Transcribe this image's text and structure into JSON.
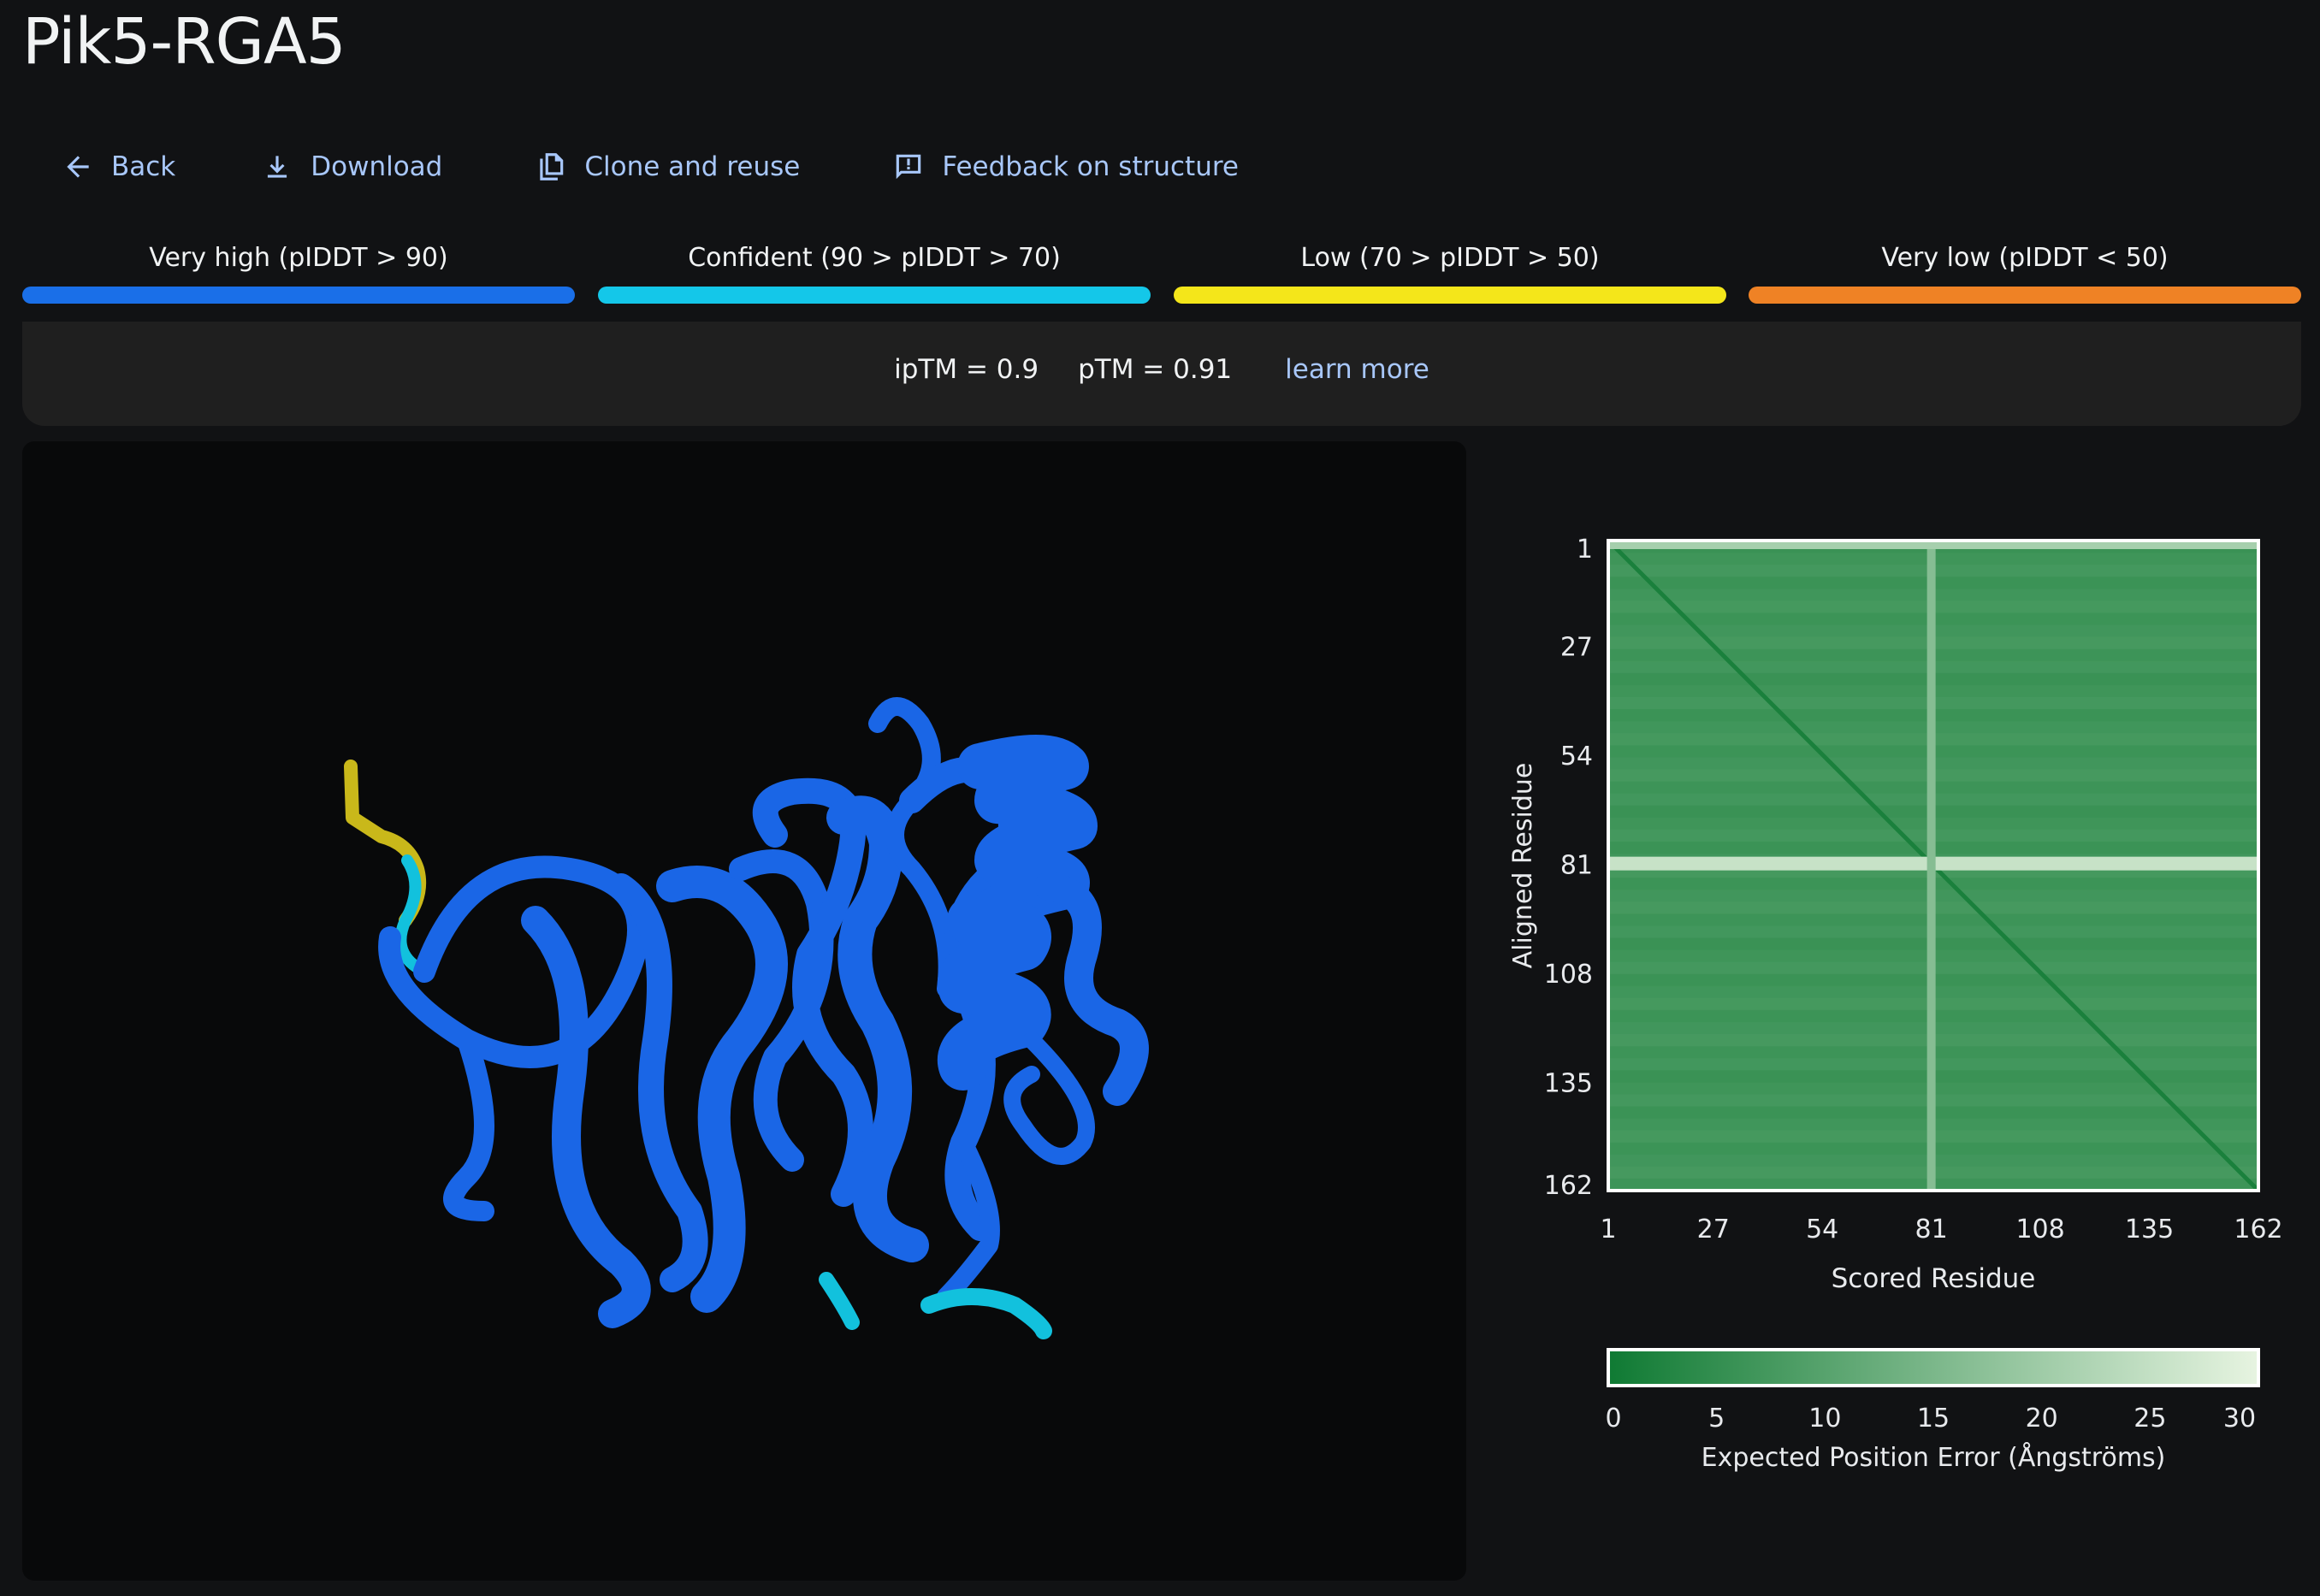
{
  "title": "Pik5-RGA5",
  "toolbar": {
    "back": "Back",
    "download": "Download",
    "clone": "Clone and reuse",
    "feedback": "Feedback on structure"
  },
  "plddt_legend": [
    {
      "label": "Very high (pIDDT > 90)",
      "color": "#1a6fe8"
    },
    {
      "label": "Confident (90 > pIDDT > 70)",
      "color": "#14c7e9"
    },
    {
      "label": "Low (70 > pIDDT > 50)",
      "color": "#f4e61a"
    },
    {
      "label": "Very low (pIDDT < 50)",
      "color": "#ef8225"
    }
  ],
  "scores": {
    "iptm": "ipTM = 0.9",
    "ptm": "pTM = 0.91",
    "learn_more": "learn more"
  },
  "structure_colors": {
    "main": "#1a66e6",
    "tip_low": "#c9b81a",
    "tip_conf": "#12c1dd"
  },
  "chart_data": {
    "type": "heatmap",
    "ylabel": "Aligned Residue",
    "xlabel": "Scored Residue",
    "x_ticks": [
      "1",
      "27",
      "54",
      "81",
      "108",
      "135",
      "162"
    ],
    "y_ticks": [
      "1",
      "27",
      "54",
      "81",
      "108",
      "135",
      "162"
    ],
    "range": [
      1,
      162
    ],
    "high_error_row": 81,
    "high_error_col": 81,
    "colorbar": {
      "label": "Expected Position Error (Ångströms)",
      "ticks": [
        "0",
        "5",
        "10",
        "15",
        "20",
        "25",
        "30"
      ],
      "min": 0,
      "max": 30,
      "color_low": "#0f7a33",
      "color_high": "#e7f4e1"
    }
  }
}
